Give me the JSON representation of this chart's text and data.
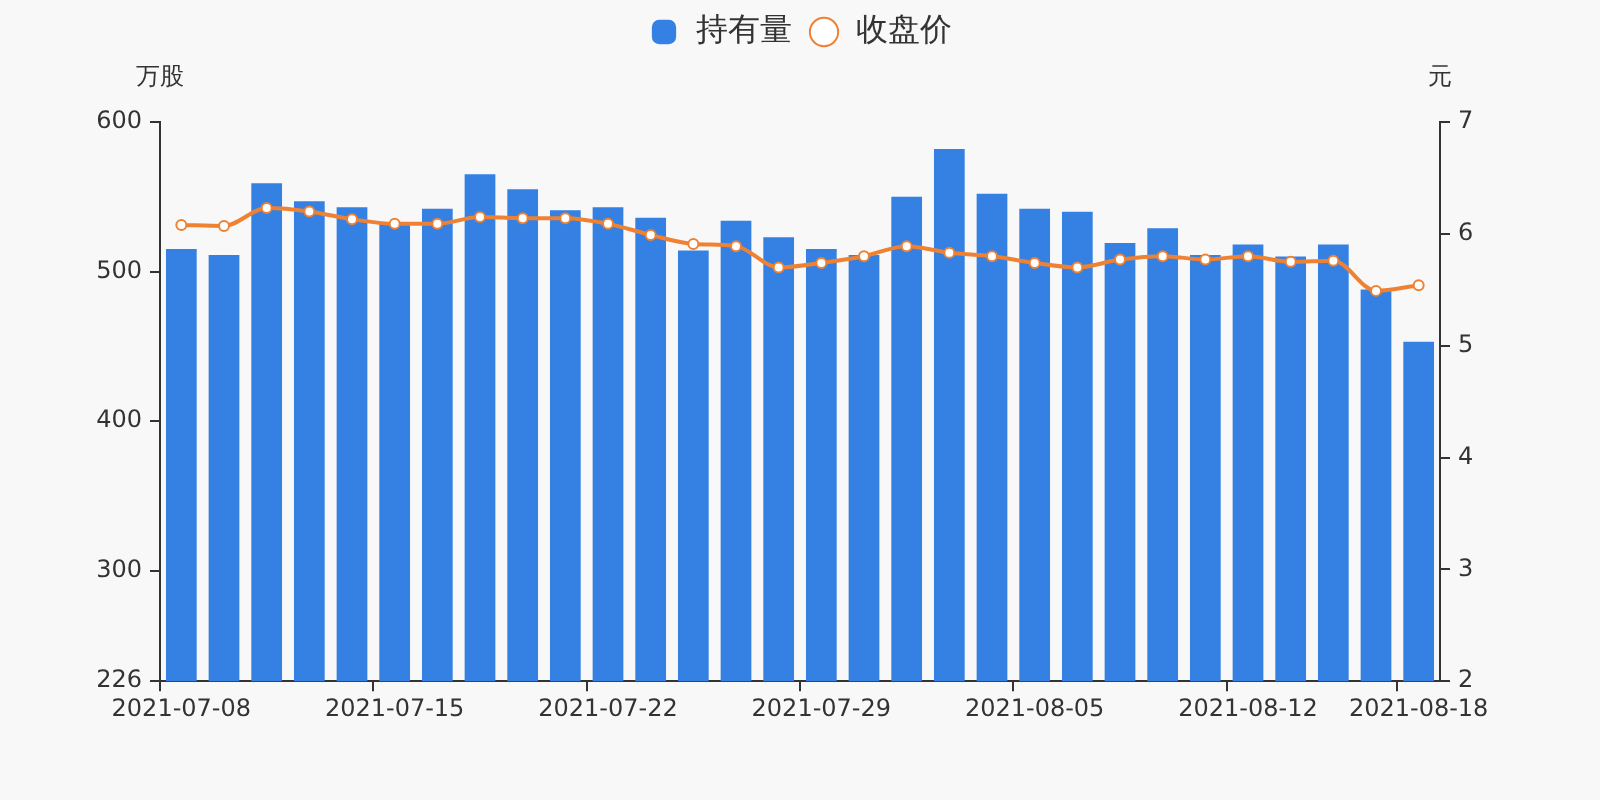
{
  "chart_data": {
    "type": "bar",
    "ylabel": "万股",
    "y2label": "元",
    "categories": [
      "2021-07-08",
      null,
      null,
      null,
      null,
      "2021-07-15",
      null,
      null,
      null,
      null,
      "2021-07-22",
      null,
      null,
      null,
      null,
      "2021-07-29",
      null,
      null,
      null,
      null,
      "2021-08-05",
      null,
      null,
      null,
      null,
      "2021-08-12",
      null,
      null,
      null,
      "2021-08-18"
    ],
    "series": [
      {
        "name": "持有量",
        "color": "#3481e3",
        "values": [
          515,
          511,
          559,
          547,
          543,
          532,
          542,
          565,
          555,
          541,
          543,
          536,
          514,
          534,
          523,
          515,
          511,
          550,
          582,
          552,
          542,
          540,
          519,
          529,
          511,
          518,
          510,
          518,
          488,
          453
        ]
      },
      {
        "name": "收盘价",
        "type": "line",
        "axis": "y2",
        "color": "#ef8133",
        "values": [
          6.08,
          6.07,
          6.23,
          6.2,
          6.13,
          6.09,
          6.09,
          6.15,
          6.14,
          6.14,
          6.09,
          5.99,
          5.91,
          5.89,
          5.7,
          5.74,
          5.8,
          5.89,
          5.83,
          5.8,
          5.74,
          5.7,
          5.77,
          5.8,
          5.77,
          5.8,
          5.75,
          5.76,
          5.49,
          5.54
        ]
      }
    ],
    "ylim": [
      226,
      600
    ],
    "yticks": [
      226,
      300,
      400,
      500,
      600
    ],
    "y2lim": [
      2,
      7
    ],
    "y2ticks": [
      2,
      3,
      4,
      5,
      6,
      7
    ],
    "grid": false,
    "legend": "top",
    "marker": "circle"
  }
}
